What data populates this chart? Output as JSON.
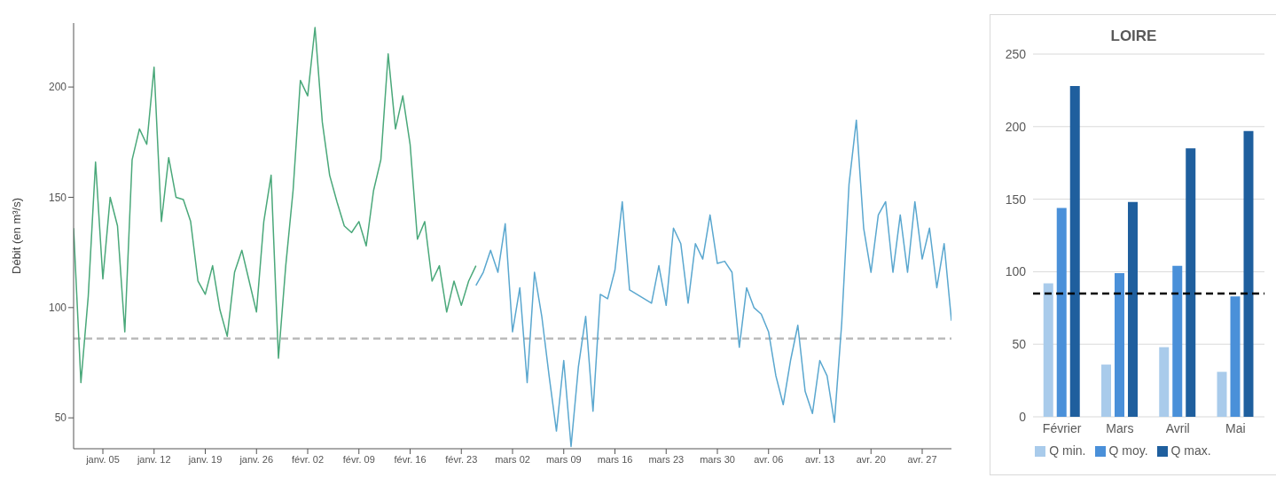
{
  "chart_data": [
    {
      "type": "line",
      "ylabel": "Débit (en m³/s)",
      "xlim": [
        "--01-01",
        "--05-01"
      ],
      "ylim": [
        36,
        229
      ],
      "yticks": [
        50,
        100,
        150,
        200
      ],
      "xticks": [
        {
          "value": "--01-05",
          "label": "janv. 05"
        },
        {
          "value": "--01-12",
          "label": "janv. 12"
        },
        {
          "value": "--01-19",
          "label": "janv. 19"
        },
        {
          "value": "--01-26",
          "label": "janv. 26"
        },
        {
          "value": "--02-02",
          "label": "févr. 02"
        },
        {
          "value": "--02-09",
          "label": "févr. 09"
        },
        {
          "value": "--02-16",
          "label": "févr. 16"
        },
        {
          "value": "--02-23",
          "label": "févr. 23"
        },
        {
          "value": "--03-02",
          "label": "mars 02"
        },
        {
          "value": "--03-09",
          "label": "mars 09"
        },
        {
          "value": "--03-16",
          "label": "mars 16"
        },
        {
          "value": "--03-23",
          "label": "mars 23"
        },
        {
          "value": "--03-30",
          "label": "mars 30"
        },
        {
          "value": "--04-06",
          "label": "avr. 06"
        },
        {
          "value": "--04-13",
          "label": "avr. 13"
        },
        {
          "value": "--04-20",
          "label": "avr. 20"
        },
        {
          "value": "--04-27",
          "label": "avr. 27"
        }
      ],
      "grid": false,
      "legend": false,
      "marker": "none",
      "line_style": "solid",
      "ref_lines": [
        {
          "axis": "y",
          "value": 86,
          "color": "#bbbbbb",
          "line_style": "dashed"
        }
      ],
      "series": [
        {
          "color": "#4aa87a",
          "x": [
            "--01-01",
            "--01-02",
            "--01-03",
            "--01-04",
            "--01-05",
            "--01-06",
            "--01-07",
            "--01-08",
            "--01-09",
            "--01-10",
            "--01-11",
            "--01-12",
            "--01-13",
            "--01-14",
            "--01-15",
            "--01-16",
            "--01-17",
            "--01-18",
            "--01-19",
            "--01-20",
            "--01-21",
            "--01-22",
            "--01-23",
            "--01-24",
            "--01-25",
            "--01-26",
            "--01-27",
            "--01-28",
            "--01-29",
            "--01-30",
            "--01-31",
            "--02-01",
            "--02-02",
            "--02-03",
            "--02-04",
            "--02-05",
            "--02-06",
            "--02-07",
            "--02-08",
            "--02-09",
            "--02-10",
            "--02-11",
            "--02-12",
            "--02-13",
            "--02-14",
            "--02-15",
            "--02-16",
            "--02-17",
            "--02-18",
            "--02-19",
            "--02-20",
            "--02-21",
            "--02-22",
            "--02-23",
            "--02-24",
            "--02-25"
          ],
          "values": [
            136,
            66,
            105,
            166,
            113,
            150,
            137,
            89,
            167,
            181,
            174,
            209,
            139,
            168,
            150,
            149,
            139,
            112,
            106,
            119,
            99,
            87,
            116,
            126,
            112,
            98,
            139,
            160,
            77,
            119,
            153,
            203,
            196,
            227,
            184,
            160,
            148,
            137,
            134,
            139,
            128,
            153,
            167,
            215,
            181,
            196,
            174,
            131,
            139,
            112,
            119,
            98,
            112,
            101,
            112,
            119
          ]
        },
        {
          "color": "#5aa7cf",
          "x": [
            "--02-25",
            "--02-26",
            "--02-27",
            "--02-28",
            "--03-01",
            "--03-02",
            "--03-03",
            "--03-04",
            "--03-05",
            "--03-06",
            "--03-07",
            "--03-08",
            "--03-09",
            "--03-10",
            "--03-11",
            "--03-12",
            "--03-13",
            "--03-14",
            "--03-15",
            "--03-16",
            "--03-17",
            "--03-18",
            "--03-19",
            "--03-20",
            "--03-21",
            "--03-22",
            "--03-23",
            "--03-24",
            "--03-25",
            "--03-26",
            "--03-27",
            "--03-28",
            "--03-29",
            "--03-30",
            "--03-31",
            "--04-01",
            "--04-02",
            "--04-03",
            "--04-04",
            "--04-05",
            "--04-06",
            "--04-07",
            "--04-08",
            "--04-09",
            "--04-10",
            "--04-11",
            "--04-12",
            "--04-13",
            "--04-14",
            "--04-15",
            "--04-16",
            "--04-17",
            "--04-18",
            "--04-19",
            "--04-20",
            "--04-21",
            "--04-22",
            "--04-23",
            "--04-24",
            "--04-25",
            "--04-26",
            "--04-27",
            "--04-28",
            "--04-29",
            "--04-30",
            "--05-01"
          ],
          "values": [
            110,
            116,
            126,
            116,
            138,
            89,
            109,
            66,
            116,
            96,
            69,
            44,
            76,
            37,
            73,
            96,
            53,
            106,
            104,
            117,
            148,
            108,
            106,
            104,
            102,
            119,
            101,
            136,
            129,
            102,
            129,
            122,
            142,
            120,
            121,
            116,
            82,
            109,
            100,
            97,
            89,
            69,
            56,
            76,
            92,
            62,
            52,
            76,
            69,
            48,
            93,
            156,
            185,
            136,
            116,
            142,
            148,
            116,
            142,
            116,
            148,
            122,
            136,
            109,
            129,
            94
          ]
        }
      ]
    },
    {
      "type": "bar",
      "title": "LOIRE",
      "categories": [
        "Février",
        "Mars",
        "Avril",
        "Mai"
      ],
      "ylim": [
        0,
        250
      ],
      "yticks": [
        0,
        50,
        100,
        150,
        200,
        250
      ],
      "grid": "y",
      "legend": "bottom",
      "ref_lines": [
        {
          "axis": "y",
          "value": 85,
          "color": "#000000",
          "line_style": "dashed"
        }
      ],
      "series": [
        {
          "name": "Q min.",
          "color": "#a9cbeb",
          "values": [
            92,
            36,
            48,
            31
          ]
        },
        {
          "name": "Q moy.",
          "color": "#4a90d9",
          "values": [
            144,
            99,
            104,
            83
          ]
        },
        {
          "name": "Q max.",
          "color": "#1f5f9e",
          "values": [
            228,
            148,
            185,
            197
          ]
        }
      ]
    }
  ]
}
